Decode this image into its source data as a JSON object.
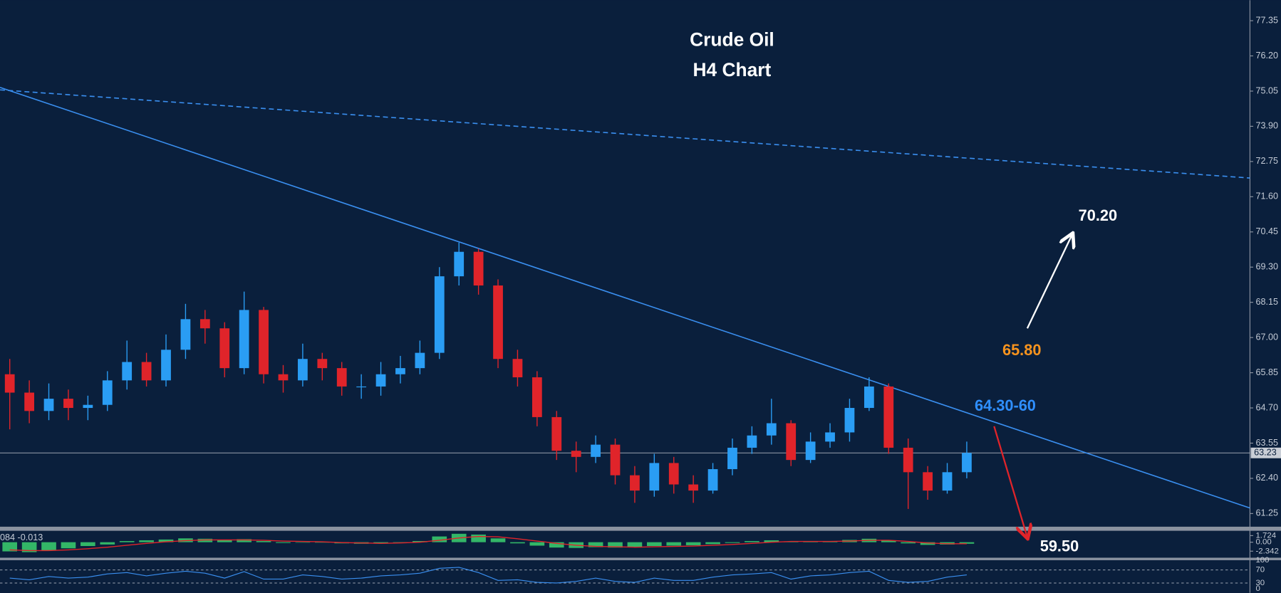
{
  "chart_data": {
    "type": "candlestick",
    "title": "Crude Oil",
    "subtitle": "H4 Chart",
    "up_color": "#2a9df4",
    "down_color": "#e0242a",
    "xlim": [
      -0.5,
      63.5
    ],
    "ylim": [
      60.82,
      78.02
    ],
    "yticks": [
      77.35,
      {
        "value": 76.2,
        "label": "76.20"
      },
      75.05,
      {
        "value": 73.9,
        "label": "73.90"
      },
      72.75,
      {
        "value": 71.6,
        "label": "71.60"
      },
      70.45,
      {
        "value": 69.3,
        "label": "69.30"
      },
      68.15,
      {
        "value": 67,
        "label": "67.00"
      },
      65.85,
      {
        "value": 64.7,
        "label": "64.70"
      },
      63.55,
      {
        "value": 62.4,
        "label": "62.40"
      },
      61.25
    ],
    "last_price": 63.23,
    "open": [
      65.8,
      65.2,
      64.6,
      65.0,
      64.7,
      64.8,
      65.6,
      66.2,
      65.6,
      66.6,
      67.6,
      67.3,
      66.0,
      67.9,
      65.8,
      65.6,
      66.3,
      66.0,
      65.4,
      65.4,
      65.8,
      66.0,
      66.5,
      69.0,
      69.8,
      68.7,
      66.3,
      65.7,
      64.4,
      63.3,
      63.1,
      63.5,
      62.5,
      62.0,
      62.9,
      62.2,
      62.0,
      62.7,
      63.4,
      63.8,
      64.2,
      63.0,
      63.6,
      63.9,
      64.7,
      65.4,
      63.4,
      62.6,
      62.0,
      62.6
    ],
    "high": [
      66.3,
      65.6,
      65.5,
      65.3,
      65.1,
      65.9,
      66.9,
      66.5,
      67.1,
      68.1,
      67.9,
      67.5,
      68.5,
      68.0,
      66.1,
      66.8,
      66.5,
      66.2,
      65.8,
      66.2,
      66.4,
      66.9,
      69.3,
      70.1,
      69.9,
      68.9,
      66.6,
      65.9,
      64.6,
      63.6,
      63.8,
      63.7,
      62.8,
      63.2,
      63.1,
      62.5,
      62.9,
      63.7,
      64.1,
      65.0,
      64.3,
      63.9,
      64.2,
      65.0,
      65.7,
      65.5,
      63.7,
      62.8,
      62.9,
      63.6
    ],
    "low": [
      64.0,
      64.2,
      64.3,
      64.3,
      64.3,
      64.6,
      65.3,
      65.4,
      65.4,
      66.3,
      66.8,
      65.7,
      65.8,
      65.5,
      65.2,
      65.4,
      65.6,
      65.1,
      65.0,
      65.1,
      65.5,
      65.8,
      66.3,
      68.7,
      68.4,
      66.0,
      65.4,
      64.1,
      63.0,
      62.6,
      62.9,
      62.2,
      61.6,
      61.8,
      61.9,
      61.6,
      61.9,
      62.5,
      63.2,
      63.5,
      62.8,
      62.9,
      63.4,
      63.6,
      64.6,
      63.2,
      61.4,
      61.7,
      61.9,
      62.4
    ],
    "close": [
      65.2,
      64.6,
      65.0,
      64.7,
      64.8,
      65.6,
      66.2,
      65.6,
      66.6,
      67.6,
      67.3,
      66.0,
      67.9,
      65.8,
      65.6,
      66.3,
      66.0,
      65.4,
      65.4,
      65.8,
      66.0,
      66.5,
      69.0,
      69.8,
      68.7,
      66.3,
      65.7,
      64.4,
      63.3,
      63.1,
      63.5,
      62.5,
      62.0,
      62.9,
      62.2,
      62.0,
      62.7,
      63.4,
      63.8,
      64.2,
      63.0,
      63.6,
      63.9,
      64.7,
      65.4,
      63.4,
      62.6,
      62.0,
      62.6,
      63.23
    ],
    "trendlines": [
      {
        "color": "#3a8ff0",
        "dashed": false,
        "x": [
          -0.5,
          63.5
        ],
        "y": [
          75.17,
          61.43
        ]
      },
      {
        "color": "#3a8ff0",
        "dashed": true,
        "x": [
          -0.5,
          63.5
        ],
        "y": [
          75.09,
          72.21
        ]
      }
    ],
    "arrows": [
      {
        "color": "#ffffff",
        "x": [
          52.1,
          54.4
        ],
        "y": [
          67.3,
          70.37
        ]
      },
      {
        "color": "#e0242a",
        "x": [
          50.4,
          52.1
        ],
        "y": [
          64.1,
          60.47
        ]
      }
    ],
    "annotations": [
      {
        "text": "70.20",
        "color": "#ffffff"
      },
      {
        "text": "65.80",
        "color": "#f7931e"
      },
      {
        "text": "64.30-60",
        "color": "#2f8fff"
      },
      {
        "text": "59.50",
        "color": "#ffffff"
      }
    ],
    "macd": {
      "label": "084 -0.013",
      "ylim": [
        -4.27,
        3.2
      ],
      "yticks": [
        1.724,
        {
          "value": 0,
          "label": "0.00"
        },
        -2.342
      ],
      "hist_color": "#3bd16f",
      "signal_color": "#e0242a",
      "hist": [
        -2.4,
        -2.6,
        -2.2,
        -1.6,
        -1.0,
        -0.6,
        0.3,
        0.5,
        0.7,
        1.0,
        0.9,
        0.5,
        0.8,
        0.3,
        -0.2,
        0.0,
        -0.1,
        -0.3,
        -0.4,
        -0.3,
        -0.1,
        0.3,
        1.5,
        2.2,
        2.0,
        1.0,
        -0.3,
        -0.9,
        -1.4,
        -1.5,
        -1.3,
        -1.4,
        -1.3,
        -1.0,
        -0.9,
        -0.8,
        -0.5,
        -0.2,
        0.3,
        0.5,
        0.2,
        0.2,
        0.3,
        0.6,
        0.9,
        0.4,
        -0.3,
        -0.7,
        -0.6,
        -0.4
      ],
      "signal": [
        -2.0,
        -2.2,
        -2.2,
        -2.0,
        -1.7,
        -1.3,
        -0.8,
        -0.3,
        0.1,
        0.4,
        0.6,
        0.6,
        0.6,
        0.5,
        0.3,
        0.2,
        0.1,
        -0.1,
        -0.2,
        -0.3,
        -0.2,
        0.0,
        0.5,
        1.1,
        1.5,
        1.4,
        0.9,
        0.3,
        -0.3,
        -0.8,
        -1.1,
        -1.2,
        -1.3,
        -1.2,
        -1.1,
        -1.0,
        -0.8,
        -0.6,
        -0.3,
        0.0,
        0.2,
        0.2,
        0.2,
        0.3,
        0.5,
        0.5,
        0.2,
        -0.2,
        -0.4,
        -0.4
      ]
    },
    "rsi": {
      "ylim": [
        0,
        100
      ],
      "yticks": [
        100,
        70,
        30,
        0
      ],
      "levels": [
        70,
        30
      ],
      "color": "#3a8ff0",
      "values": [
        45,
        40,
        50,
        45,
        48,
        58,
        62,
        52,
        60,
        66,
        60,
        45,
        65,
        42,
        42,
        55,
        50,
        42,
        45,
        52,
        55,
        60,
        75,
        78,
        62,
        38,
        40,
        32,
        30,
        35,
        45,
        35,
        32,
        45,
        38,
        38,
        48,
        55,
        58,
        62,
        42,
        52,
        55,
        62,
        66,
        38,
        32,
        35,
        48,
        55
      ]
    }
  }
}
